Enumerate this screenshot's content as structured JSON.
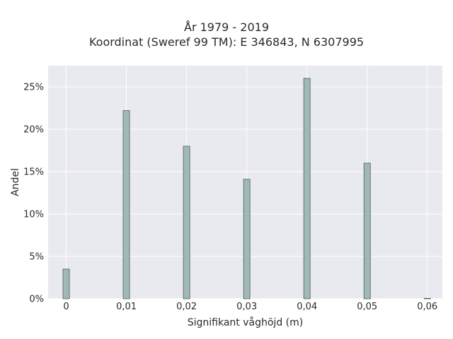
{
  "chart_data": {
    "type": "bar",
    "title": "År 1979 - 2019",
    "subtitle": "Koordinat (Sweref 99 TM): E 346843, N 6307995",
    "xlabel": "Signifikant våghöjd (m)",
    "ylabel": "Andel",
    "categories": [
      "0",
      "0,01",
      "0,02",
      "0,03",
      "0,04",
      "0,05",
      "0,06"
    ],
    "x": [
      0,
      0.01,
      0.02,
      0.03,
      0.04,
      0.05,
      0.06
    ],
    "values": [
      3.5,
      22.2,
      18.0,
      14.1,
      26.0,
      16.0,
      0.05
    ],
    "y_unit": "%",
    "xlim": [
      -0.003,
      0.0625
    ],
    "ylim": [
      0,
      27.5
    ],
    "yticks": [
      0,
      5,
      10,
      15,
      20,
      25
    ],
    "ytick_labels": [
      "0%",
      "5%",
      "10%",
      "15%",
      "20%",
      "25%"
    ],
    "grid": true,
    "colors": {
      "bar_fill": "#a0b9b7",
      "bar_stroke": "#4a5c5a",
      "plot_bg": "#e9e9f0",
      "grid": "#ffffff"
    }
  }
}
